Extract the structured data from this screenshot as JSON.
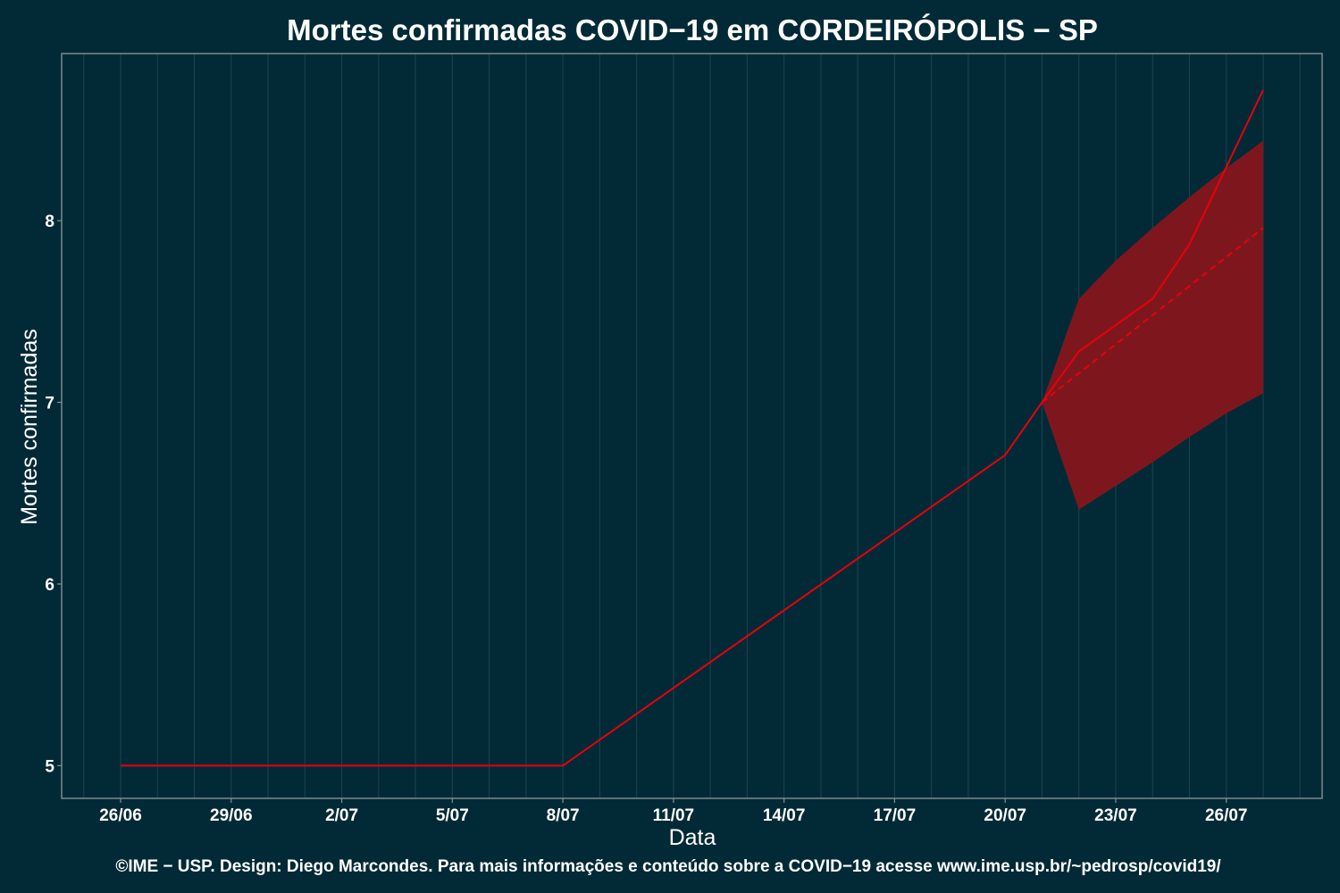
{
  "chart_data": {
    "type": "line",
    "title": "Mortes confirmadas COVID−19 em CORDEIRÓPOLIS − SP",
    "xlabel": "Data",
    "ylabel": "Mortes confirmadas",
    "caption": "©IME − USP. Design: Diego Marcondes. Para mais informações e conteúdo sobre a COVID−19 acesse www.ime.usp.br/~pedrosp/covid19/",
    "x_tick_labels": [
      "26/06",
      "29/06",
      "2/07",
      "5/07",
      "8/07",
      "11/07",
      "14/07",
      "17/07",
      "20/07",
      "23/07",
      "26/07"
    ],
    "x_tick_positions": [
      0,
      3,
      6,
      9,
      12,
      15,
      18,
      21,
      24,
      27,
      30
    ],
    "y_ticks": [
      5,
      6,
      7,
      8
    ],
    "xlim": [
      -1.6,
      32.6
    ],
    "ylim": [
      4.82,
      8.92
    ],
    "grid": true,
    "colors": {
      "background": "#022A36",
      "panel_border": "#7F9295",
      "grid": "#1B414C",
      "line": "#E8000B",
      "band": "#7E171D"
    },
    "series": [
      {
        "style": "solid",
        "x": [
          0,
          12,
          24,
          25,
          26,
          28,
          29,
          31
        ],
        "y": [
          5,
          5,
          6.71,
          7.0,
          7.28,
          7.57,
          7.87,
          8.72
        ]
      },
      {
        "style": "dashed",
        "x": [
          25,
          31
        ],
        "y": [
          7.0,
          7.96
        ]
      }
    ],
    "band": {
      "x": [
        25,
        26,
        27,
        28,
        29,
        30,
        31
      ],
      "lower": [
        7.0,
        6.41,
        6.54,
        6.67,
        6.81,
        6.94,
        7.05
      ],
      "upper": [
        7.0,
        7.57,
        7.78,
        7.96,
        8.13,
        8.29,
        8.44
      ]
    }
  }
}
